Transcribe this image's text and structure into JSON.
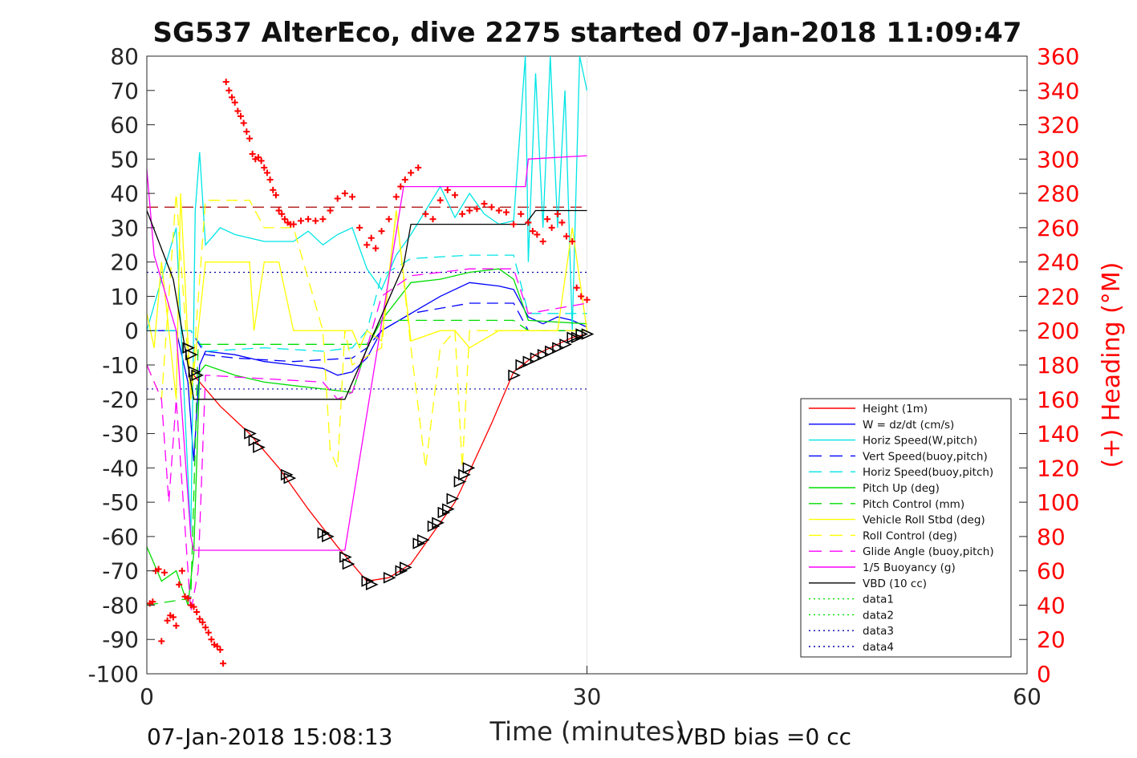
{
  "chart_data": {
    "type": "line",
    "title": "SG537 AlterEco, dive 2275 started 07-Jan-2018 11:09:47",
    "xlabel": "Time (minutes)",
    "ylabel_right": "(+) Heading (°M)",
    "xlim": [
      0,
      60
    ],
    "ylim_left": [
      -100,
      80
    ],
    "ylim_right": [
      0,
      360
    ],
    "xticks": [
      "0",
      "30",
      "60"
    ],
    "yticks_left": [
      "80",
      "70",
      "60",
      "50",
      "40",
      "30",
      "20",
      "10",
      "0",
      "-10",
      "-20",
      "-30",
      "-40",
      "-50",
      "-60",
      "-70",
      "-80",
      "-90",
      "-100"
    ],
    "yticks_right": [
      "360",
      "340",
      "320",
      "300",
      "280",
      "260",
      "240",
      "220",
      "200",
      "180",
      "160",
      "140",
      "120",
      "100",
      "80",
      "60",
      "40",
      "20",
      "0"
    ],
    "footer_left": "07-Jan-2018 15:08:13",
    "footer_right": "VBD bias =0 cc",
    "grid": "major-x",
    "legend_position": "lower-right",
    "legend": [
      {
        "name": "Height (1m)",
        "color": "#ff0000",
        "style": "solid"
      },
      {
        "name": "W = dz/dt (cm/s)",
        "color": "#0000ff",
        "style": "solid"
      },
      {
        "name": "Horiz Speed(W,pitch)",
        "color": "#00e5e5",
        "style": "solid"
      },
      {
        "name": "Vert Speed(buoy,pitch)",
        "color": "#0000ff",
        "style": "dashed"
      },
      {
        "name": "Horiz Speed(buoy,pitch)",
        "color": "#00e5e5",
        "style": "dashed"
      },
      {
        "name": "Pitch Up (deg)",
        "color": "#00dd00",
        "style": "solid"
      },
      {
        "name": "Pitch Control (mm)",
        "color": "#00dd00",
        "style": "dashed"
      },
      {
        "name": "Vehicle Roll Stbd (deg)",
        "color": "#ffff00",
        "style": "solid"
      },
      {
        "name": "Roll Control (deg)",
        "color": "#ffff00",
        "style": "dashed"
      },
      {
        "name": "Glide Angle (buoy,pitch)",
        "color": "#ff00ff",
        "style": "dashed"
      },
      {
        "name": "1/5 Buoyancy (g)",
        "color": "#ff00ff",
        "style": "solid"
      },
      {
        "name": "VBD (10 cc)",
        "color": "#000000",
        "style": "solid"
      },
      {
        "name": "data1",
        "color": "#00dd00",
        "style": "dotted"
      },
      {
        "name": "data2",
        "color": "#00dd00",
        "style": "dotted"
      },
      {
        "name": "data3",
        "color": "#0000aa",
        "style": "dotted"
      },
      {
        "name": "data4",
        "color": "#0000aa",
        "style": "dotted"
      }
    ],
    "series": [
      {
        "name": "Height (1m)",
        "color": "#ff0000",
        "style": "solid",
        "x": [
          3.2,
          5,
          7,
          9,
          11,
          13,
          14,
          15,
          16.5,
          18,
          19.5,
          21,
          22,
          23.5,
          25,
          26.5,
          28,
          29,
          30
        ],
        "y": [
          -13,
          -22,
          -30,
          -40,
          -52,
          -63,
          -68,
          -73,
          -72,
          -68,
          -59,
          -50,
          -41,
          -27,
          -12,
          -7,
          -4,
          -2,
          -1
        ]
      },
      {
        "name": "W = dz/dt (cm/s)",
        "color": "#0000ff",
        "style": "solid",
        "x": [
          0,
          2,
          2.8,
          3.2,
          3.6,
          4,
          6,
          8,
          10,
          12,
          13,
          14,
          15,
          16,
          18,
          20,
          22,
          24,
          25,
          26,
          27,
          28,
          29,
          30
        ],
        "y": [
          0,
          0,
          -15,
          -38,
          -10,
          -6,
          -7,
          -9,
          -10,
          -11,
          -13,
          -12,
          -8,
          0,
          5,
          10,
          14,
          13,
          12,
          4,
          2,
          4,
          3,
          1
        ]
      },
      {
        "name": "Horiz Speed(W,pitch)",
        "color": "#00e5e5",
        "style": "solid",
        "x": [
          0,
          1,
          2,
          3,
          3.3,
          3.6,
          4,
          5,
          6,
          8,
          10,
          11,
          12,
          13,
          14,
          15,
          16,
          17,
          18,
          19,
          20,
          21,
          22,
          23,
          24,
          25,
          25.8,
          26,
          26.5,
          27,
          27.5,
          28,
          28.5,
          29,
          29.5,
          30
        ],
        "y": [
          0,
          15,
          30,
          -60,
          35,
          52,
          25,
          30,
          28,
          26,
          26,
          29,
          25,
          28,
          30,
          18,
          12,
          22,
          28,
          35,
          42,
          33,
          40,
          34,
          31,
          32,
          80,
          20,
          75,
          30,
          80,
          30,
          70,
          0,
          80,
          70
        ]
      },
      {
        "name": "Vert Speed(buoy,pitch)",
        "color": "#0000ff",
        "style": "dashed",
        "x": [
          0,
          3,
          4,
          6,
          10,
          14,
          15,
          16,
          18,
          22,
          25,
          26,
          30
        ],
        "y": [
          0,
          0,
          -7,
          -8,
          -9,
          -8,
          -5,
          0,
          5,
          8,
          8,
          0,
          0
        ]
      },
      {
        "name": "Horiz Speed(buoy,pitch)",
        "color": "#00e5e5",
        "style": "dashed",
        "x": [
          0,
          3,
          4,
          8,
          12,
          14,
          15,
          16,
          18,
          22,
          25,
          26,
          30
        ],
        "y": [
          0,
          0,
          -6,
          -5,
          -6,
          -5,
          0,
          16,
          21,
          22,
          22,
          5,
          5
        ]
      },
      {
        "name": "Pitch Up (deg)",
        "color": "#00dd00",
        "style": "solid",
        "x": [
          0,
          1,
          2,
          2.8,
          3.2,
          3.6,
          4,
          6,
          8,
          10,
          12,
          14,
          15,
          16,
          18,
          20,
          22,
          24,
          25,
          26,
          30
        ],
        "y": [
          -63,
          -73,
          -70,
          -80,
          -65,
          -12,
          -10,
          -13,
          -15,
          -16,
          -17,
          -18,
          -5,
          3,
          14,
          15,
          17,
          18,
          15,
          3,
          2
        ]
      },
      {
        "name": "Pitch Control (mm)",
        "color": "#00dd00",
        "style": "dashed",
        "x": [
          0,
          3,
          3.5,
          14,
          15,
          16,
          25,
          26,
          30
        ],
        "y": [
          -80,
          -78,
          -4,
          -4,
          -4,
          3,
          3,
          0,
          0
        ]
      },
      {
        "name": "Vehicle Roll Stbd (deg)",
        "color": "#ffff00",
        "style": "solid",
        "x": [
          0,
          0.5,
          1,
          2,
          2.3,
          3,
          4,
          7,
          7.3,
          8,
          9,
          10,
          12,
          14,
          14.5,
          15,
          16,
          17,
          18,
          20,
          21,
          22,
          24,
          25,
          26,
          28,
          29,
          30
        ],
        "y": [
          5,
          -5,
          20,
          -20,
          40,
          -20,
          20,
          20,
          0,
          20,
          20,
          0,
          0,
          0,
          -5,
          0,
          -3,
          35,
          -3,
          0,
          0,
          -5,
          0,
          0,
          0,
          0,
          30,
          0
        ]
      },
      {
        "name": "Roll Control (deg)",
        "color": "#ffff00",
        "style": "dashed",
        "x": [
          0,
          1,
          2,
          3,
          4,
          7,
          8,
          10,
          12,
          12.5,
          13,
          13.5,
          14,
          16,
          17,
          18,
          19,
          20,
          21,
          21.5,
          22,
          25,
          30
        ],
        "y": [
          -10,
          -20,
          40,
          -20,
          38,
          38,
          30,
          30,
          0,
          -35,
          -40,
          0,
          -10,
          -5,
          35,
          -5,
          -40,
          -5,
          0,
          -40,
          0,
          0,
          0
        ]
      },
      {
        "name": "Glide Angle (buoy,pitch)",
        "color": "#ff00ff",
        "style": "dashed",
        "x": [
          0,
          1,
          1.5,
          2,
          3,
          3.5,
          4,
          8,
          12,
          13,
          14,
          15,
          16,
          18,
          20,
          22,
          25,
          26,
          30
        ],
        "y": [
          -10,
          -20,
          -50,
          -20,
          -82,
          -70,
          -13,
          -14,
          -15,
          -20,
          -18,
          -5,
          10,
          16,
          17,
          18,
          18,
          5,
          8
        ]
      },
      {
        "name": "1/5 Buoyancy (g)",
        "color": "#ff00ff",
        "style": "solid",
        "x": [
          0,
          0.5,
          2,
          3,
          3.2,
          13.5,
          17.5,
          18,
          25.8,
          26,
          30
        ],
        "y": [
          47,
          22,
          0,
          -60,
          -64,
          -64,
          42,
          42,
          42,
          50,
          51
        ]
      },
      {
        "name": "VBD (10 cc)",
        "color": "#000000",
        "style": "solid",
        "x": [
          0,
          1.8,
          2.8,
          3.2,
          13.5,
          17.5,
          18,
          25.8,
          26.5,
          30
        ],
        "y": [
          35,
          15,
          -10,
          -20,
          -20,
          19,
          31,
          31,
          35,
          35
        ]
      }
    ],
    "reference_lines_left": [
      {
        "y": 36,
        "color": "#aa0000",
        "style": "dashed",
        "x": [
          0,
          30
        ]
      },
      {
        "y": 17,
        "color": "#0000aa",
        "style": "dotted",
        "x": [
          0,
          30
        ]
      },
      {
        "y": -17,
        "color": "#0000aa",
        "style": "dotted",
        "x": [
          0,
          30
        ]
      }
    ],
    "heading_points": {
      "name": "Heading",
      "color": "#ff0000",
      "marker": "+",
      "x": [
        0.2,
        0.4,
        0.6,
        0.8,
        1.0,
        1.2,
        1.4,
        1.6,
        1.8,
        2.0,
        2.2,
        2.4,
        2.6,
        2.8,
        3.0,
        3.2,
        3.4,
        3.6,
        3.8,
        4.0,
        4.2,
        4.4,
        4.6,
        4.8,
        5.0,
        5.2,
        5.4,
        5.6,
        5.8,
        6.0,
        6.2,
        6.4,
        6.6,
        6.8,
        7.0,
        7.2,
        7.4,
        7.6,
        7.8,
        8.0,
        8.2,
        8.4,
        8.6,
        8.8,
        9.0,
        9.2,
        9.4,
        9.6,
        9.8,
        10.0,
        10.5,
        11.0,
        11.5,
        12.0,
        12.5,
        13.0,
        13.5,
        14.0,
        14.5,
        15.0,
        15.3,
        15.6,
        16.0,
        16.5,
        17.0,
        17.3,
        17.6,
        18.0,
        18.5,
        19.0,
        19.5,
        20.0,
        20.5,
        21.0,
        21.5,
        22.0,
        22.5,
        23.0,
        23.5,
        24.0,
        24.5,
        25.0,
        25.5,
        26.0,
        26.3,
        26.6,
        27.0,
        27.3,
        27.6,
        28.0,
        28.3,
        28.6,
        29.0,
        29.3,
        29.6,
        30.0
      ],
      "y": [
        41,
        42,
        60,
        61,
        19,
        59,
        31,
        34,
        33,
        28,
        52,
        60,
        45,
        44,
        40,
        39,
        36,
        32,
        30,
        27,
        24,
        20,
        17,
        16,
        14,
        6,
        345,
        340,
        336,
        333,
        328,
        325,
        321,
        316,
        312,
        303,
        300,
        301,
        299,
        295,
        292,
        288,
        282,
        279,
        270,
        268,
        265,
        263,
        262,
        262,
        264,
        265,
        264,
        265,
        270,
        277,
        280,
        278,
        260,
        250,
        254,
        248,
        258,
        265,
        278,
        284,
        288,
        292,
        295,
        268,
        265,
        276,
        282,
        279,
        268,
        270,
        271,
        274,
        272,
        270,
        269,
        262,
        268,
        263,
        258,
        256,
        252,
        265,
        260,
        268,
        263,
        255,
        252,
        225,
        220,
        218
      ]
    },
    "glider_markers": {
      "color": "#000000",
      "marker": "triangle",
      "x": [
        2.8,
        3.0,
        3.2,
        3.4,
        7.0,
        7.3,
        7.6,
        9.5,
        9.7,
        12.0,
        12.3,
        13.5,
        13.7,
        15.0,
        15.3,
        16.5,
        17.3,
        17.6,
        18.5,
        18.8,
        19.5,
        19.8,
        20.2,
        20.5,
        20.8,
        21.3,
        21.6,
        21.9,
        25.0,
        25.5,
        26.0,
        26.5,
        27.0,
        27.5,
        28.0,
        28.5,
        29.0,
        29.3,
        29.6,
        30.0
      ],
      "y": [
        -5,
        -7,
        -12,
        -13,
        -30,
        -32,
        -34,
        -42,
        -43,
        -59,
        -60,
        -66,
        -68,
        -73,
        -74,
        -72,
        -70,
        -69,
        -62,
        -61,
        -57,
        -56,
        -53,
        -52,
        -49,
        -44,
        -42,
        -40,
        -13,
        -10,
        -9,
        -8,
        -7,
        -6,
        -5,
        -4,
        -2,
        -2,
        -1,
        -1
      ]
    }
  }
}
